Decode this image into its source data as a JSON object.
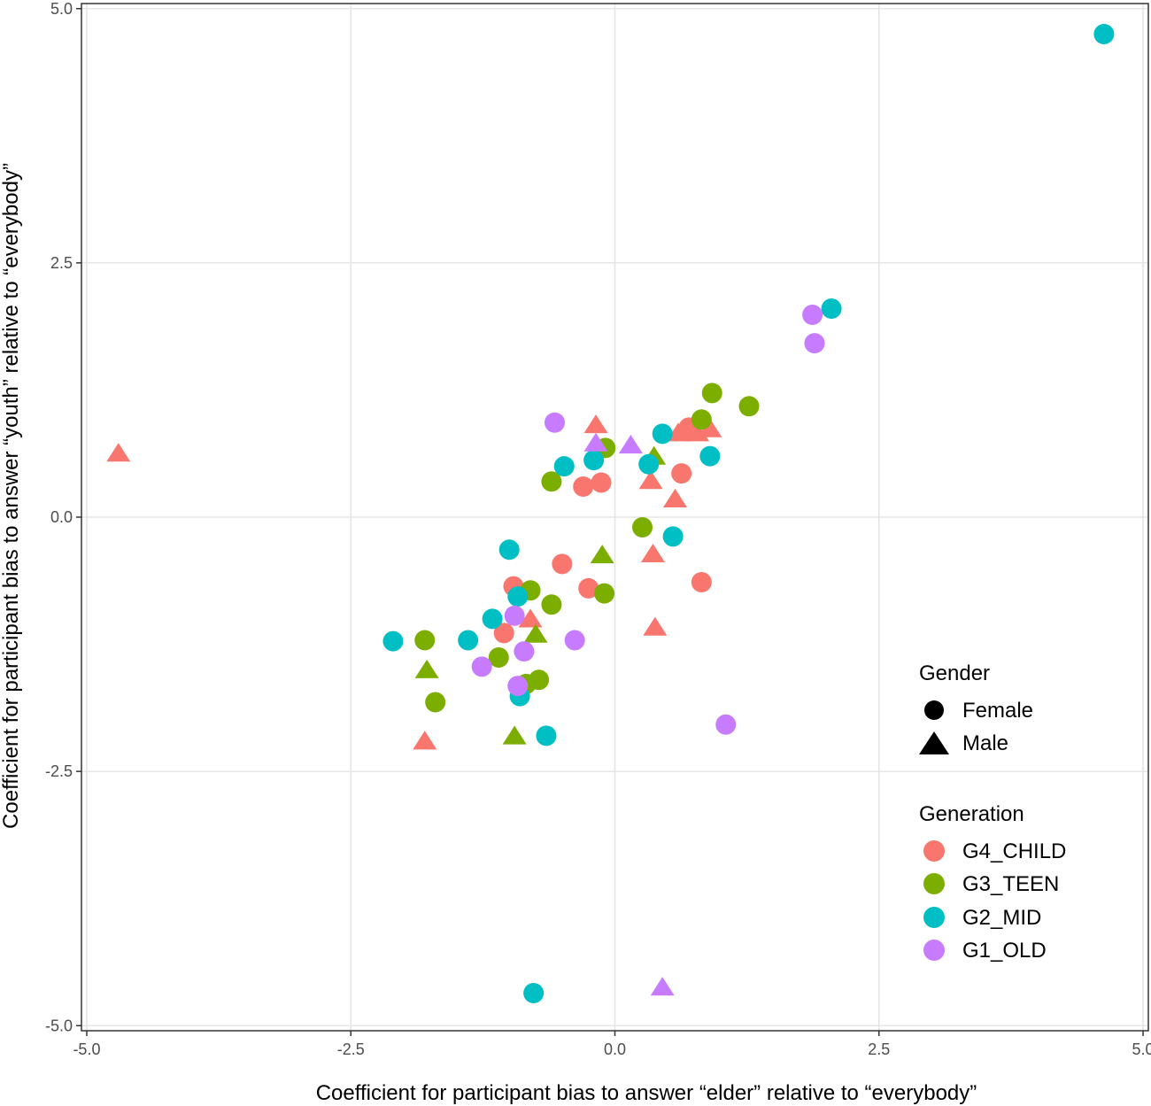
{
  "chart_data": {
    "type": "scatter",
    "xlabel": "Coefficient for participant bias to answer “elder” relative to “everybody”",
    "ylabel": "Coefficient for participant bias to answer “youth” relative to “everybody”",
    "xlim": [
      -5.05,
      5.05
    ],
    "ylim": [
      -5.05,
      5.05
    ],
    "x_ticks": [
      -5.0,
      -2.5,
      0.0,
      2.5,
      5.0
    ],
    "y_ticks": [
      -5.0,
      -2.5,
      0.0,
      2.5,
      5.0
    ],
    "x_tick_labels": [
      "-5.0",
      "-2.5",
      "0.0",
      "2.5",
      "5.0"
    ],
    "y_tick_labels": [
      "-5.0",
      "-2.5",
      "0.0",
      "2.5",
      "5.0"
    ],
    "grid": true,
    "legend_position": "right",
    "legend_gender": {
      "title": "Gender",
      "entries": [
        {
          "label": "Female",
          "shape": "circle"
        },
        {
          "label": "Male",
          "shape": "triangle"
        }
      ]
    },
    "legend_generation": {
      "title": "Generation",
      "entries": [
        {
          "label": "G4_CHILD",
          "color": "#F8766D"
        },
        {
          "label": "G3_TEEN",
          "color": "#7CAE00"
        },
        {
          "label": "G2_MID",
          "color": "#00BFC4"
        },
        {
          "label": "G1_OLD",
          "color": "#C77CFF"
        }
      ]
    },
    "points": [
      {
        "x": -4.7,
        "y": 0.62,
        "gen": "G4_CHILD",
        "gender": "Male"
      },
      {
        "x": -0.18,
        "y": 0.9,
        "gen": "G4_CHILD",
        "gender": "Male"
      },
      {
        "x": 0.6,
        "y": 0.82,
        "gen": "G4_CHILD",
        "gender": "Male"
      },
      {
        "x": 0.78,
        "y": 0.82,
        "gen": "G4_CHILD",
        "gender": "Male"
      },
      {
        "x": 0.9,
        "y": 0.86,
        "gen": "G4_CHILD",
        "gender": "Male"
      },
      {
        "x": 0.7,
        "y": 0.88,
        "gen": "G4_CHILD",
        "gender": "Female"
      },
      {
        "x": 0.63,
        "y": 0.43,
        "gen": "G4_CHILD",
        "gender": "Female"
      },
      {
        "x": 0.34,
        "y": 0.35,
        "gen": "G4_CHILD",
        "gender": "Male"
      },
      {
        "x": -0.13,
        "y": 0.34,
        "gen": "G4_CHILD",
        "gender": "Female"
      },
      {
        "x": -0.3,
        "y": 0.3,
        "gen": "G4_CHILD",
        "gender": "Female"
      },
      {
        "x": 0.57,
        "y": 0.17,
        "gen": "G4_CHILD",
        "gender": "Male"
      },
      {
        "x": 0.36,
        "y": -0.37,
        "gen": "G4_CHILD",
        "gender": "Male"
      },
      {
        "x": -0.5,
        "y": -0.46,
        "gen": "G4_CHILD",
        "gender": "Female"
      },
      {
        "x": 0.82,
        "y": -0.64,
        "gen": "G4_CHILD",
        "gender": "Female"
      },
      {
        "x": -0.25,
        "y": -0.7,
        "gen": "G4_CHILD",
        "gender": "Female"
      },
      {
        "x": -0.96,
        "y": -0.68,
        "gen": "G4_CHILD",
        "gender": "Female"
      },
      {
        "x": -0.8,
        "y": -1.01,
        "gen": "G4_CHILD",
        "gender": "Male"
      },
      {
        "x": -1.05,
        "y": -1.14,
        "gen": "G4_CHILD",
        "gender": "Female"
      },
      {
        "x": 0.38,
        "y": -1.09,
        "gen": "G4_CHILD",
        "gender": "Male"
      },
      {
        "x": -1.8,
        "y": -2.21,
        "gen": "G4_CHILD",
        "gender": "Male"
      },
      {
        "x": 0.92,
        "y": 1.22,
        "gen": "G3_TEEN",
        "gender": "Female"
      },
      {
        "x": 1.27,
        "y": 1.09,
        "gen": "G3_TEEN",
        "gender": "Female"
      },
      {
        "x": 0.82,
        "y": 0.96,
        "gen": "G3_TEEN",
        "gender": "Female"
      },
      {
        "x": -0.09,
        "y": 0.68,
        "gen": "G3_TEEN",
        "gender": "Female"
      },
      {
        "x": 0.37,
        "y": 0.59,
        "gen": "G3_TEEN",
        "gender": "Male"
      },
      {
        "x": -0.6,
        "y": 0.35,
        "gen": "G3_TEEN",
        "gender": "Female"
      },
      {
        "x": 0.26,
        "y": -0.1,
        "gen": "G3_TEEN",
        "gender": "Female"
      },
      {
        "x": -0.12,
        "y": -0.38,
        "gen": "G3_TEEN",
        "gender": "Male"
      },
      {
        "x": -0.8,
        "y": -0.72,
        "gen": "G3_TEEN",
        "gender": "Female"
      },
      {
        "x": -0.1,
        "y": -0.75,
        "gen": "G3_TEEN",
        "gender": "Female"
      },
      {
        "x": -0.6,
        "y": -0.86,
        "gen": "G3_TEEN",
        "gender": "Female"
      },
      {
        "x": -0.75,
        "y": -1.16,
        "gen": "G3_TEEN",
        "gender": "Male"
      },
      {
        "x": -1.8,
        "y": -1.21,
        "gen": "G3_TEEN",
        "gender": "Female"
      },
      {
        "x": -1.1,
        "y": -1.38,
        "gen": "G3_TEEN",
        "gender": "Female"
      },
      {
        "x": -1.78,
        "y": -1.51,
        "gen": "G3_TEEN",
        "gender": "Male"
      },
      {
        "x": -0.72,
        "y": -1.6,
        "gen": "G3_TEEN",
        "gender": "Female"
      },
      {
        "x": -0.84,
        "y": -1.64,
        "gen": "G3_TEEN",
        "gender": "Female"
      },
      {
        "x": -1.7,
        "y": -1.82,
        "gen": "G3_TEEN",
        "gender": "Female"
      },
      {
        "x": -0.95,
        "y": -2.16,
        "gen": "G3_TEEN",
        "gender": "Male"
      },
      {
        "x": 4.63,
        "y": 4.75,
        "gen": "G2_MID",
        "gender": "Female"
      },
      {
        "x": 2.05,
        "y": 2.05,
        "gen": "G2_MID",
        "gender": "Female"
      },
      {
        "x": 0.45,
        "y": 0.82,
        "gen": "G2_MID",
        "gender": "Female"
      },
      {
        "x": 0.9,
        "y": 0.6,
        "gen": "G2_MID",
        "gender": "Female"
      },
      {
        "x": -0.2,
        "y": 0.56,
        "gen": "G2_MID",
        "gender": "Female"
      },
      {
        "x": 0.32,
        "y": 0.52,
        "gen": "G2_MID",
        "gender": "Female"
      },
      {
        "x": -0.48,
        "y": 0.5,
        "gen": "G2_MID",
        "gender": "Female"
      },
      {
        "x": 0.55,
        "y": -0.19,
        "gen": "G2_MID",
        "gender": "Female"
      },
      {
        "x": -1.0,
        "y": -0.32,
        "gen": "G2_MID",
        "gender": "Female"
      },
      {
        "x": -0.92,
        "y": -0.78,
        "gen": "G2_MID",
        "gender": "Female"
      },
      {
        "x": -1.16,
        "y": -1.0,
        "gen": "G2_MID",
        "gender": "Female"
      },
      {
        "x": -2.1,
        "y": -1.22,
        "gen": "G2_MID",
        "gender": "Female"
      },
      {
        "x": -1.39,
        "y": -1.21,
        "gen": "G2_MID",
        "gender": "Female"
      },
      {
        "x": -0.9,
        "y": -1.76,
        "gen": "G2_MID",
        "gender": "Female"
      },
      {
        "x": -0.65,
        "y": -2.15,
        "gen": "G2_MID",
        "gender": "Female"
      },
      {
        "x": -0.77,
        "y": -4.68,
        "gen": "G2_MID",
        "gender": "Female"
      },
      {
        "x": 1.87,
        "y": 1.99,
        "gen": "G1_OLD",
        "gender": "Female"
      },
      {
        "x": 1.89,
        "y": 1.71,
        "gen": "G1_OLD",
        "gender": "Female"
      },
      {
        "x": -0.57,
        "y": 0.93,
        "gen": "G1_OLD",
        "gender": "Female"
      },
      {
        "x": -0.18,
        "y": 0.72,
        "gen": "G1_OLD",
        "gender": "Male"
      },
      {
        "x": 0.15,
        "y": 0.7,
        "gen": "G1_OLD",
        "gender": "Male"
      },
      {
        "x": -0.95,
        "y": -0.97,
        "gen": "G1_OLD",
        "gender": "Female"
      },
      {
        "x": -0.38,
        "y": -1.21,
        "gen": "G1_OLD",
        "gender": "Female"
      },
      {
        "x": -0.86,
        "y": -1.32,
        "gen": "G1_OLD",
        "gender": "Female"
      },
      {
        "x": -1.26,
        "y": -1.47,
        "gen": "G1_OLD",
        "gender": "Female"
      },
      {
        "x": -0.92,
        "y": -1.66,
        "gen": "G1_OLD",
        "gender": "Female"
      },
      {
        "x": 1.05,
        "y": -2.04,
        "gen": "G1_OLD",
        "gender": "Female"
      },
      {
        "x": 0.45,
        "y": -4.63,
        "gen": "G1_OLD",
        "gender": "Male"
      }
    ]
  }
}
